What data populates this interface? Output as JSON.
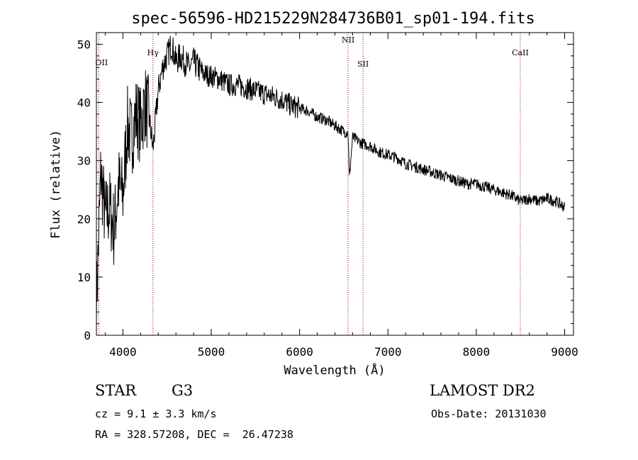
{
  "chart_data": {
    "type": "line",
    "title": "spec-56596-HD215229N284736B01_sp01-194.fits",
    "xlabel": "Wavelength (Å)",
    "ylabel": "Flux (relative)",
    "xlim": [
      3700,
      9100
    ],
    "ylim": [
      0,
      52
    ],
    "xticks": [
      4000,
      5000,
      6000,
      7000,
      8000,
      9000
    ],
    "yticks": [
      0,
      10,
      20,
      30,
      40,
      50
    ],
    "grid": false,
    "line_color": "#000000",
    "marker_color": "#8b0000",
    "spectral_lines": [
      {
        "label": "OII",
        "wavelength": 3727
      },
      {
        "label": "Hγ",
        "wavelength": 4340
      },
      {
        "label": "NII",
        "wavelength": 6549
      },
      {
        "label": "SII",
        "wavelength": 6718
      },
      {
        "label": "CaII",
        "wavelength": 8498
      }
    ],
    "series": [
      {
        "x": [
          3700,
          3750,
          3800,
          3850,
          3900,
          3950,
          4000,
          4050,
          4100,
          4150,
          4200,
          4250,
          4300,
          4340,
          4400,
          4450,
          4500,
          4550,
          4600,
          4650,
          4700,
          4750,
          4800,
          4900,
          5000,
          5100,
          5200,
          5300,
          5400,
          5500,
          5600,
          5700,
          5800,
          5900,
          6000,
          6100,
          6200,
          6300,
          6400,
          6500,
          6550,
          6563,
          6600,
          6700,
          6800,
          6900,
          7000,
          7100,
          7200,
          7300,
          7400,
          7500,
          7600,
          7700,
          7800,
          7900,
          8000,
          8100,
          8200,
          8300,
          8400,
          8500,
          8600,
          8700,
          8800,
          8900,
          9000
        ],
        "y": [
          5,
          28,
          20,
          22,
          18,
          26,
          24,
          36,
          34,
          38,
          36,
          40,
          37,
          32,
          42,
          46,
          48,
          50,
          47,
          48,
          47,
          46,
          47,
          45,
          44.5,
          44,
          43,
          43,
          42.5,
          42,
          41.5,
          41,
          40.5,
          39.5,
          39,
          38.5,
          37.5,
          37,
          36,
          35,
          34.8,
          27,
          34,
          33,
          32.5,
          31.5,
          31,
          30.5,
          29.5,
          29,
          28.5,
          28,
          27.5,
          27,
          26.5,
          26,
          26,
          25.5,
          25,
          24.5,
          24,
          23,
          23.5,
          23,
          23.5,
          23,
          22
        ]
      }
    ]
  },
  "info": {
    "object_class": "STAR",
    "subclass": "G3",
    "survey": "LAMOST DR2",
    "cz": "cz = 9.1 ± 3.3 km/s",
    "obs_date": "Obs-Date: 20131030",
    "coords": "RA = 328.57208, DEC =  26.47238"
  }
}
